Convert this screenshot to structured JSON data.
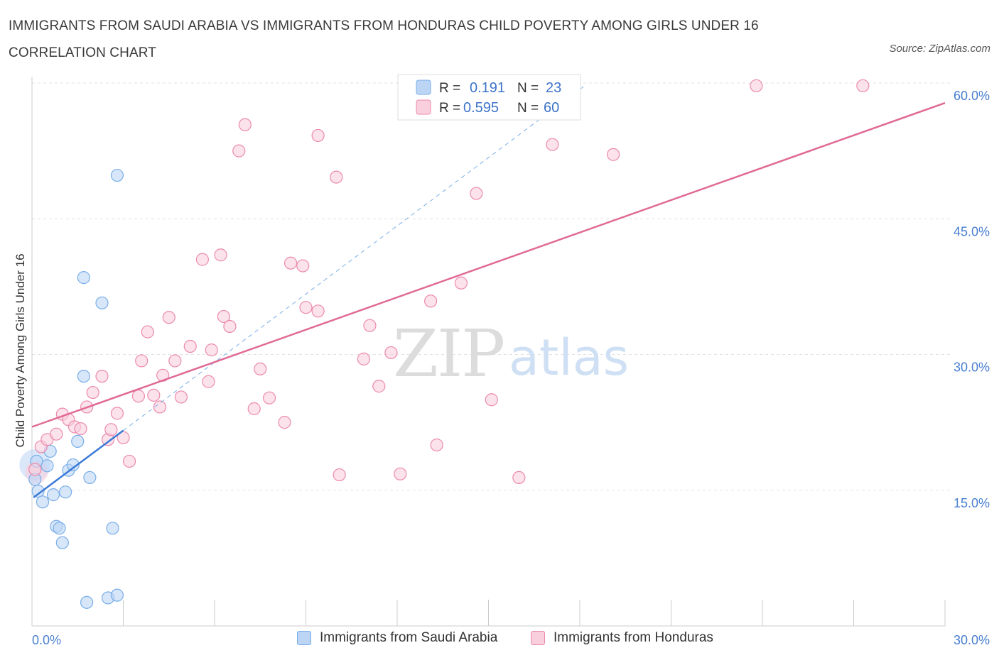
{
  "chart_data": {
    "type": "scatter",
    "title": "IMMIGRANTS FROM SAUDI ARABIA VS IMMIGRANTS FROM HONDURAS CHILD POVERTY AMONG GIRLS UNDER 16 CORRELATION CHART",
    "source": "Source: ZipAtlas.com",
    "ylabel": "Child Poverty Among Girls Under 16",
    "xlim": [
      0,
      30
    ],
    "ylim": [
      0,
      60
    ],
    "x_tick_labels": [
      "0.0%",
      "30.0%"
    ],
    "y_ticks": [
      15,
      30,
      45,
      60
    ],
    "y_tick_labels": [
      "15.0%",
      "30.0%",
      "45.0%",
      "60.0%"
    ],
    "watermark": {
      "zip": "ZIP",
      "atlas": "atlas"
    },
    "legend": {
      "r_label": "R =",
      "n_label": "N =",
      "entries": [
        {
          "r": "0.191",
          "n": "23"
        },
        {
          "r": "0.595",
          "n": "60"
        }
      ]
    },
    "series": [
      {
        "name": "Immigrants from Saudi Arabia",
        "color": "#7aaee8",
        "fill": "#bcd5f5",
        "trend": {
          "x0": 0.05,
          "y0": 14.2,
          "x1": 3.0,
          "y1": 21.6
        },
        "trend_dashed": {
          "x0": 3.0,
          "y0": 21.6,
          "x1": 18.2,
          "y1": 59.8
        },
        "points": [
          [
            0.1,
            16.2
          ],
          [
            0.2,
            14.9
          ],
          [
            0.35,
            13.7
          ],
          [
            0.5,
            17.7
          ],
          [
            0.6,
            19.3
          ],
          [
            0.7,
            14.5
          ],
          [
            0.8,
            11.0
          ],
          [
            0.9,
            10.8
          ],
          [
            1.0,
            9.2
          ],
          [
            1.1,
            14.8
          ],
          [
            1.2,
            17.2
          ],
          [
            1.35,
            17.8
          ],
          [
            1.5,
            20.4
          ],
          [
            1.7,
            38.5
          ],
          [
            1.7,
            27.6
          ],
          [
            1.9,
            16.4
          ],
          [
            1.8,
            2.6
          ],
          [
            2.3,
            35.7
          ],
          [
            2.5,
            3.1
          ],
          [
            2.65,
            10.8
          ],
          [
            2.8,
            3.4
          ],
          [
            2.8,
            49.8
          ],
          [
            0.15,
            18.2
          ]
        ]
      },
      {
        "name": "Immigrants from Honduras",
        "color": "#ec8aab",
        "fill": "#f9cfdd",
        "trend": {
          "x0": 0,
          "y0": 22.0,
          "x1": 30,
          "y1": 57.8
        },
        "points": [
          [
            0.1,
            17.3
          ],
          [
            0.3,
            19.8
          ],
          [
            0.5,
            20.6
          ],
          [
            0.8,
            21.2
          ],
          [
            1.0,
            23.4
          ],
          [
            1.2,
            22.8
          ],
          [
            1.4,
            22.0
          ],
          [
            1.6,
            21.8
          ],
          [
            1.8,
            24.2
          ],
          [
            2.0,
            25.8
          ],
          [
            2.3,
            27.6
          ],
          [
            2.5,
            20.6
          ],
          [
            2.6,
            21.7
          ],
          [
            2.8,
            23.5
          ],
          [
            3.0,
            20.8
          ],
          [
            3.2,
            18.2
          ],
          [
            3.5,
            25.4
          ],
          [
            3.6,
            29.3
          ],
          [
            3.8,
            32.5
          ],
          [
            4.0,
            25.5
          ],
          [
            4.2,
            24.2
          ],
          [
            4.3,
            27.7
          ],
          [
            4.5,
            34.1
          ],
          [
            4.7,
            29.3
          ],
          [
            4.9,
            25.3
          ],
          [
            5.2,
            30.9
          ],
          [
            5.6,
            40.5
          ],
          [
            5.8,
            27.0
          ],
          [
            5.9,
            30.5
          ],
          [
            6.2,
            41.0
          ],
          [
            6.3,
            34.2
          ],
          [
            6.5,
            33.1
          ],
          [
            6.8,
            52.5
          ],
          [
            7.0,
            55.4
          ],
          [
            7.3,
            24.0
          ],
          [
            7.5,
            28.4
          ],
          [
            7.8,
            25.2
          ],
          [
            8.3,
            22.5
          ],
          [
            8.5,
            40.1
          ],
          [
            8.9,
            39.8
          ],
          [
            9.0,
            35.2
          ],
          [
            9.4,
            34.8
          ],
          [
            9.4,
            54.2
          ],
          [
            10.0,
            49.6
          ],
          [
            10.1,
            16.7
          ],
          [
            10.9,
            29.5
          ],
          [
            11.1,
            33.2
          ],
          [
            11.4,
            26.5
          ],
          [
            11.8,
            30.2
          ],
          [
            12.1,
            16.8
          ],
          [
            13.1,
            35.9
          ],
          [
            13.3,
            20.0
          ],
          [
            14.1,
            37.9
          ],
          [
            14.6,
            47.8
          ],
          [
            15.1,
            25.0
          ],
          [
            16.0,
            16.4
          ],
          [
            17.1,
            53.2
          ],
          [
            19.1,
            52.1
          ],
          [
            23.8,
            59.7
          ],
          [
            27.3,
            59.7
          ]
        ]
      }
    ]
  },
  "bottom_legend": [
    "Immigrants from Saudi Arabia",
    "Immigrants from Honduras"
  ]
}
